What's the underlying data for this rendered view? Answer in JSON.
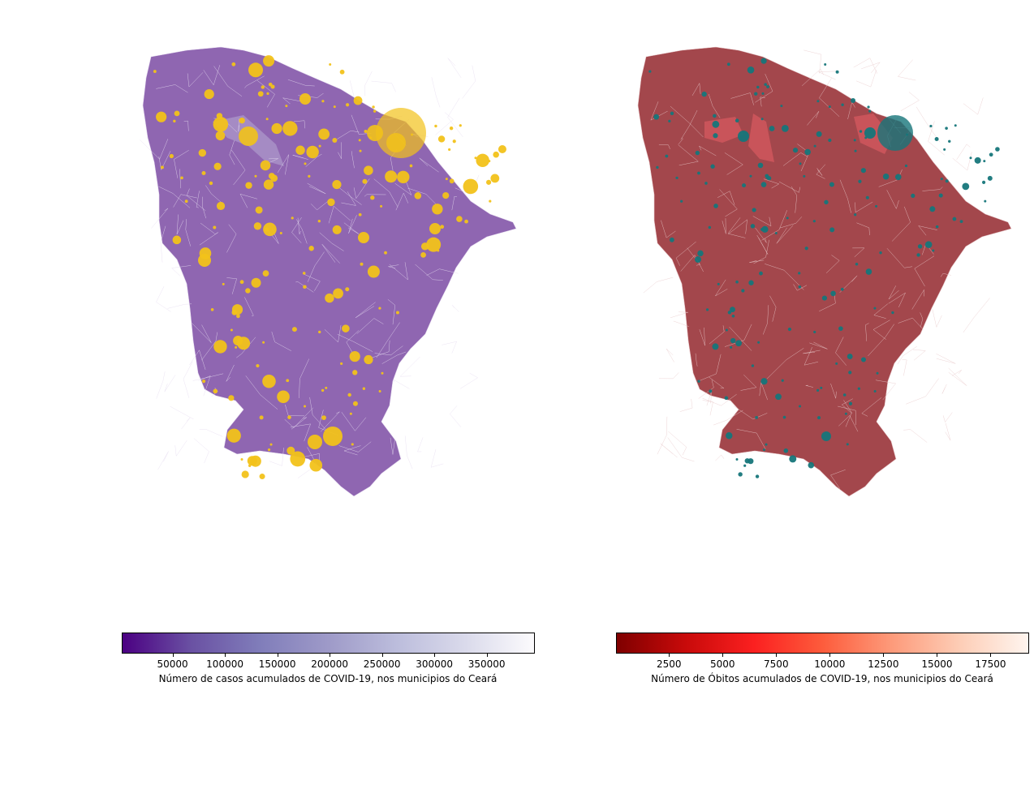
{
  "maps": [
    {
      "fill": "#8f66b1",
      "border": "#e6dcf0",
      "bubble_color": "#f2c21a",
      "highlight_fill": "#a58bc4",
      "bubble_stroke": "#e0b000"
    },
    {
      "fill": "#a3474c",
      "border": "#e8c9cb",
      "bubble_color": "#16767a",
      "highlight_fill": "#c9545a",
      "bubble_stroke": "#0f5e61"
    }
  ],
  "colorbars": [
    {
      "label": "Número de casos acumulados de COVID-19, nos municipios do Ceará",
      "ticks": [
        "50000",
        "100000",
        "150000",
        "200000",
        "250000",
        "300000",
        "350000"
      ],
      "tick_values": [
        50000,
        100000,
        150000,
        200000,
        250000,
        300000,
        350000
      ],
      "range": [
        1500,
        396000
      ],
      "colors": [
        "#4b0082",
        "#6a51a3",
        "#807dba",
        "#9e9ac8",
        "#bcbddc",
        "#dadaeb",
        "#fcfbfd"
      ]
    },
    {
      "label": "Número de Óbitos acumulados de COVID-19, nos municipios do Ceará",
      "ticks": [
        "2500",
        "5000",
        "7500",
        "10000",
        "12500",
        "15000",
        "17500"
      ],
      "tick_values": [
        2500,
        5000,
        7500,
        10000,
        12500,
        15000,
        17500
      ],
      "range": [
        30,
        19300
      ],
      "colors": [
        "#7f0000",
        "#c80a0a",
        "#fb2020",
        "#fd5c3c",
        "#fd9a7a",
        "#fdcdb6",
        "#fff5ef"
      ]
    }
  ]
}
